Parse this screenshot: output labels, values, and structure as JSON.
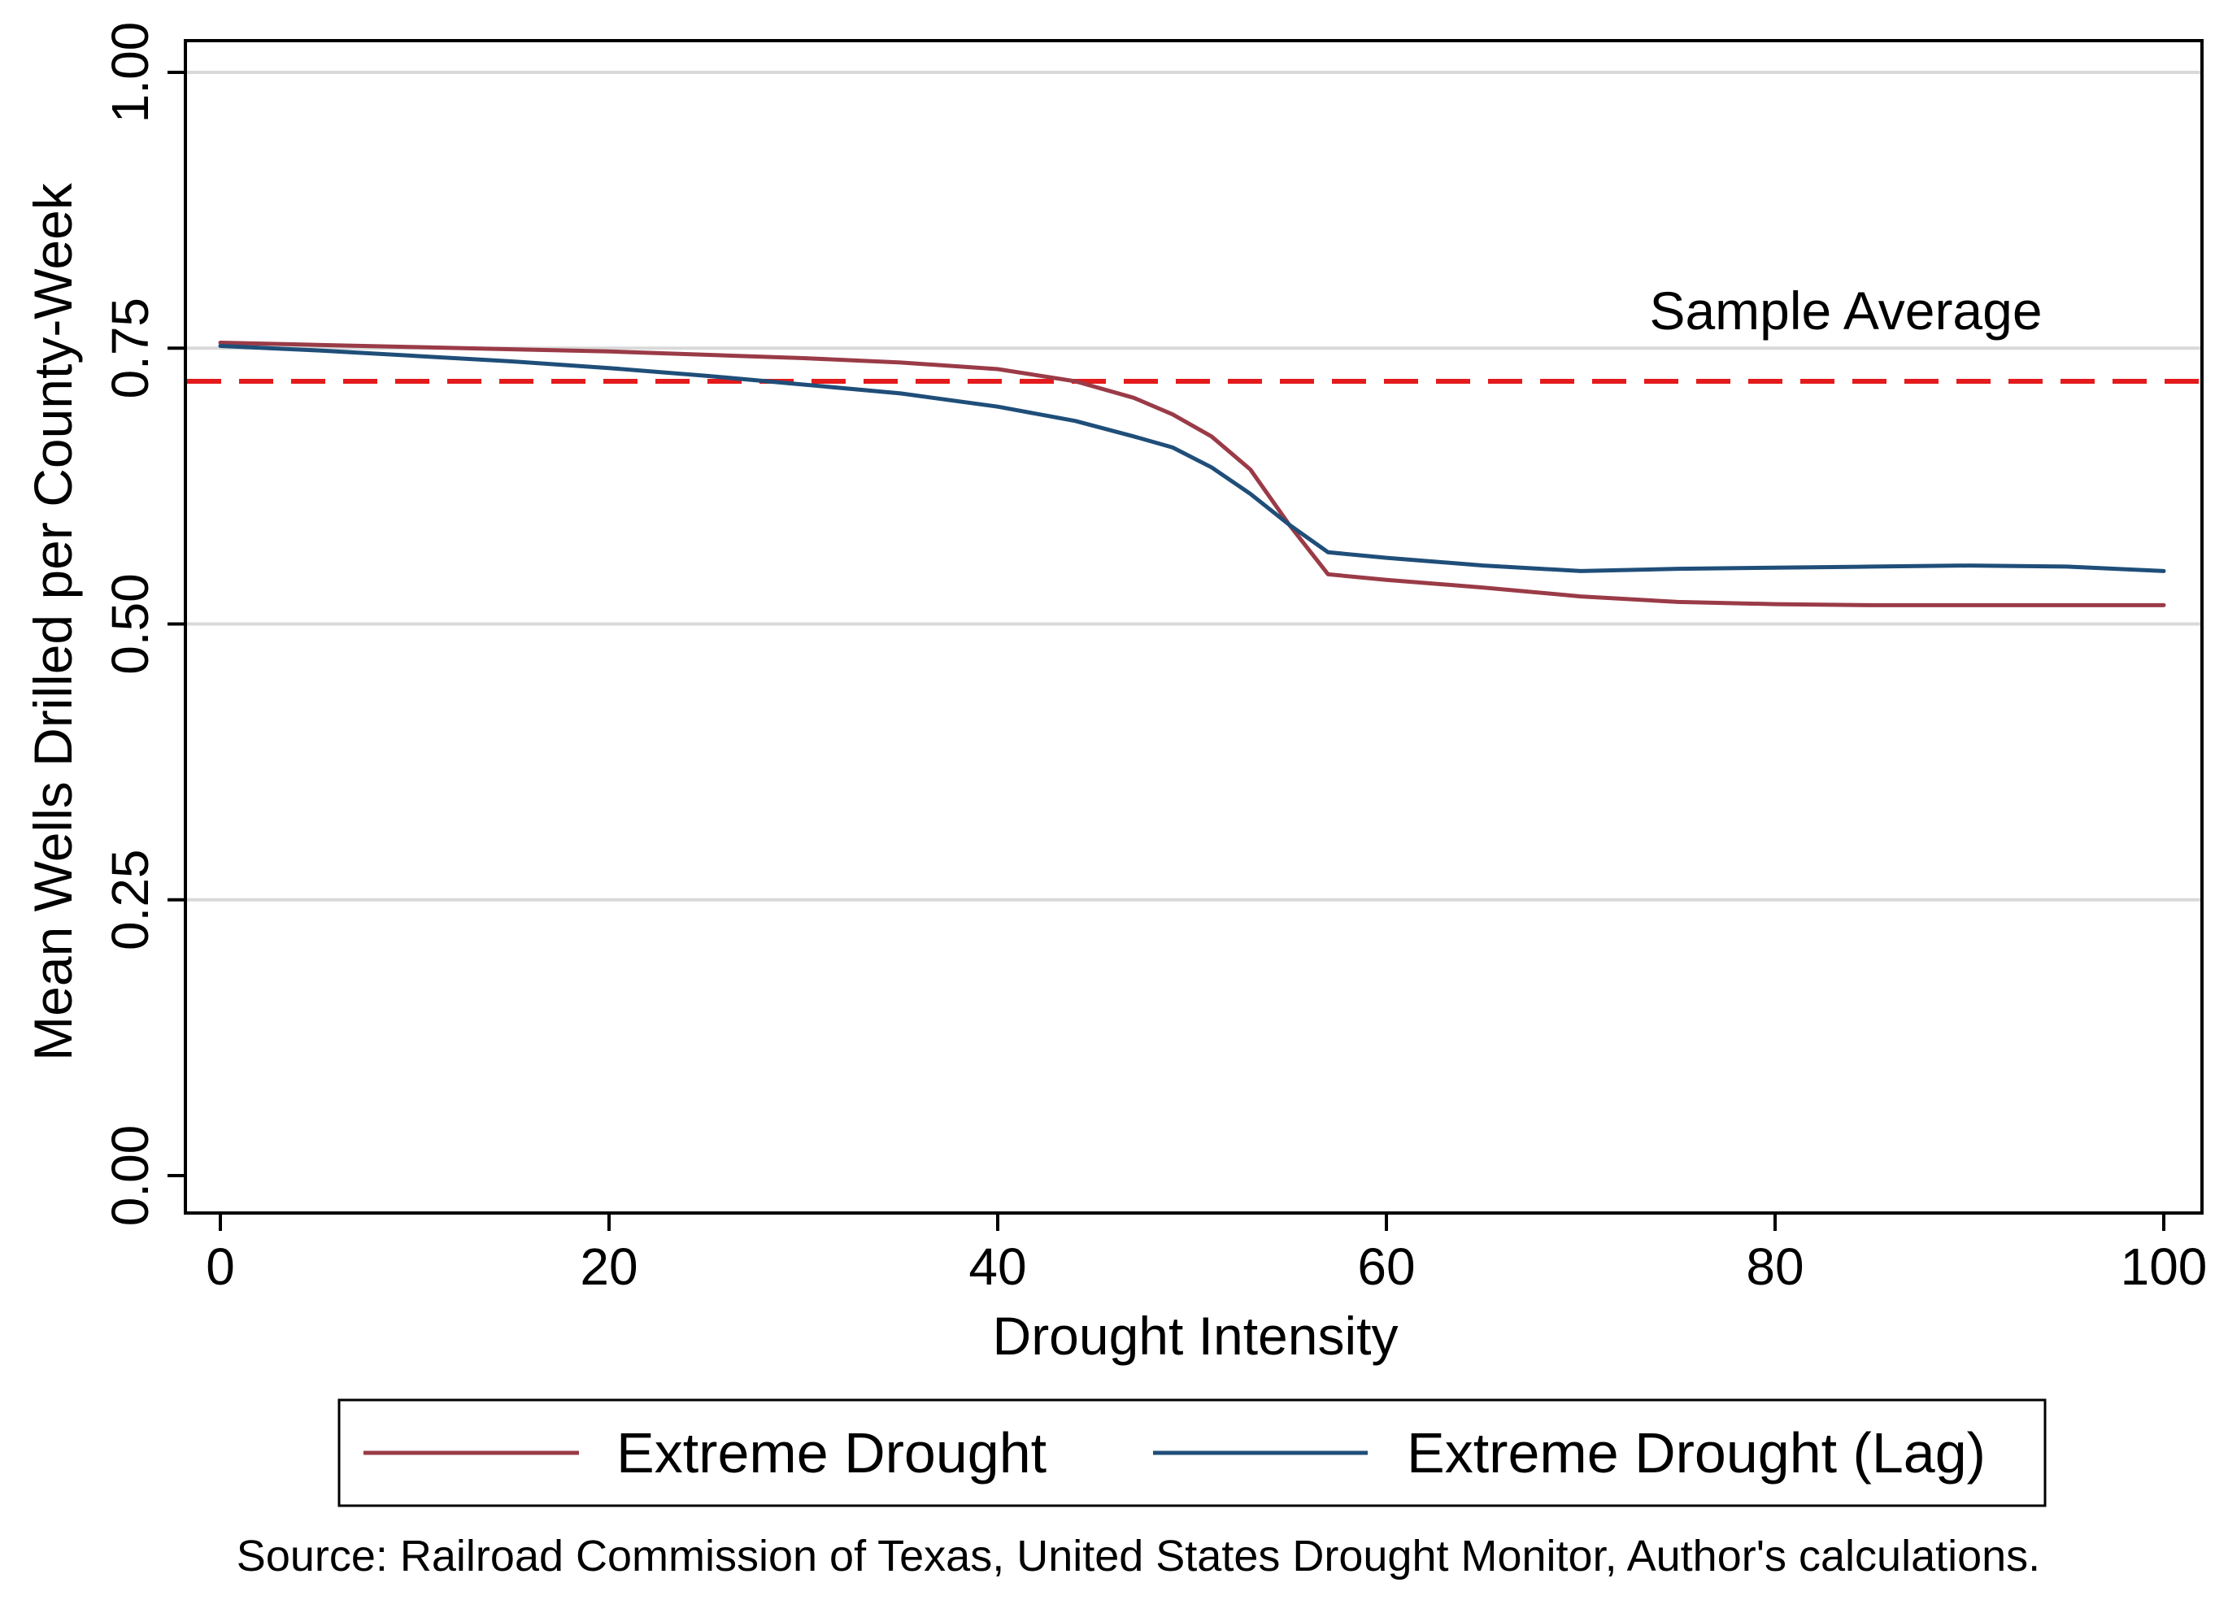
{
  "chart_data": {
    "type": "line",
    "title": "",
    "xlabel": "Drought Intensity",
    "ylabel": "Mean Wells Drilled per County-Week",
    "xlim": [
      0,
      100
    ],
    "ylim": [
      0.0,
      1.0
    ],
    "xticks": [
      0,
      20,
      40,
      60,
      80,
      100
    ],
    "xtick_labels": [
      "0",
      "20",
      "40",
      "60",
      "80",
      "100"
    ],
    "yticks": [
      0.0,
      0.25,
      0.5,
      0.75,
      1.0
    ],
    "ytick_labels": [
      "0.00",
      "0.25",
      "0.50",
      "0.75",
      "1.00"
    ],
    "grid": "horizontal",
    "reference_line": {
      "label": "Sample Average",
      "y": 0.72,
      "color": "#e41a1c",
      "style": "dashed"
    },
    "series": [
      {
        "name": "Extreme Drought",
        "color": "#9a3b47",
        "x": [
          0,
          5,
          10,
          15,
          20,
          25,
          30,
          35,
          40,
          44,
          47,
          49,
          51,
          53,
          55,
          57,
          60,
          65,
          70,
          75,
          80,
          85,
          90,
          95,
          100
        ],
        "y": [
          0.755,
          0.753,
          0.751,
          0.749,
          0.747,
          0.744,
          0.741,
          0.737,
          0.731,
          0.72,
          0.705,
          0.69,
          0.67,
          0.64,
          0.59,
          0.545,
          0.54,
          0.533,
          0.525,
          0.52,
          0.518,
          0.517,
          0.517,
          0.517,
          0.517
        ]
      },
      {
        "name": "Extreme Drought (Lag)",
        "color": "#1f4e79",
        "x": [
          0,
          5,
          10,
          15,
          20,
          25,
          30,
          35,
          40,
          44,
          47,
          49,
          51,
          53,
          55,
          57,
          60,
          65,
          70,
          75,
          80,
          85,
          90,
          95,
          100
        ],
        "y": [
          0.752,
          0.748,
          0.743,
          0.738,
          0.732,
          0.725,
          0.717,
          0.709,
          0.697,
          0.684,
          0.67,
          0.66,
          0.642,
          0.618,
          0.59,
          0.565,
          0.56,
          0.553,
          0.548,
          0.55,
          0.551,
          0.552,
          0.553,
          0.552,
          0.548
        ]
      }
    ],
    "legend": {
      "position": "bottom",
      "entries": [
        "Extreme Drought",
        "Extreme Drought (Lag)"
      ]
    },
    "source_note": "Source: Railroad Commission of Texas, United States Drought Monitor, Author's calculations."
  }
}
